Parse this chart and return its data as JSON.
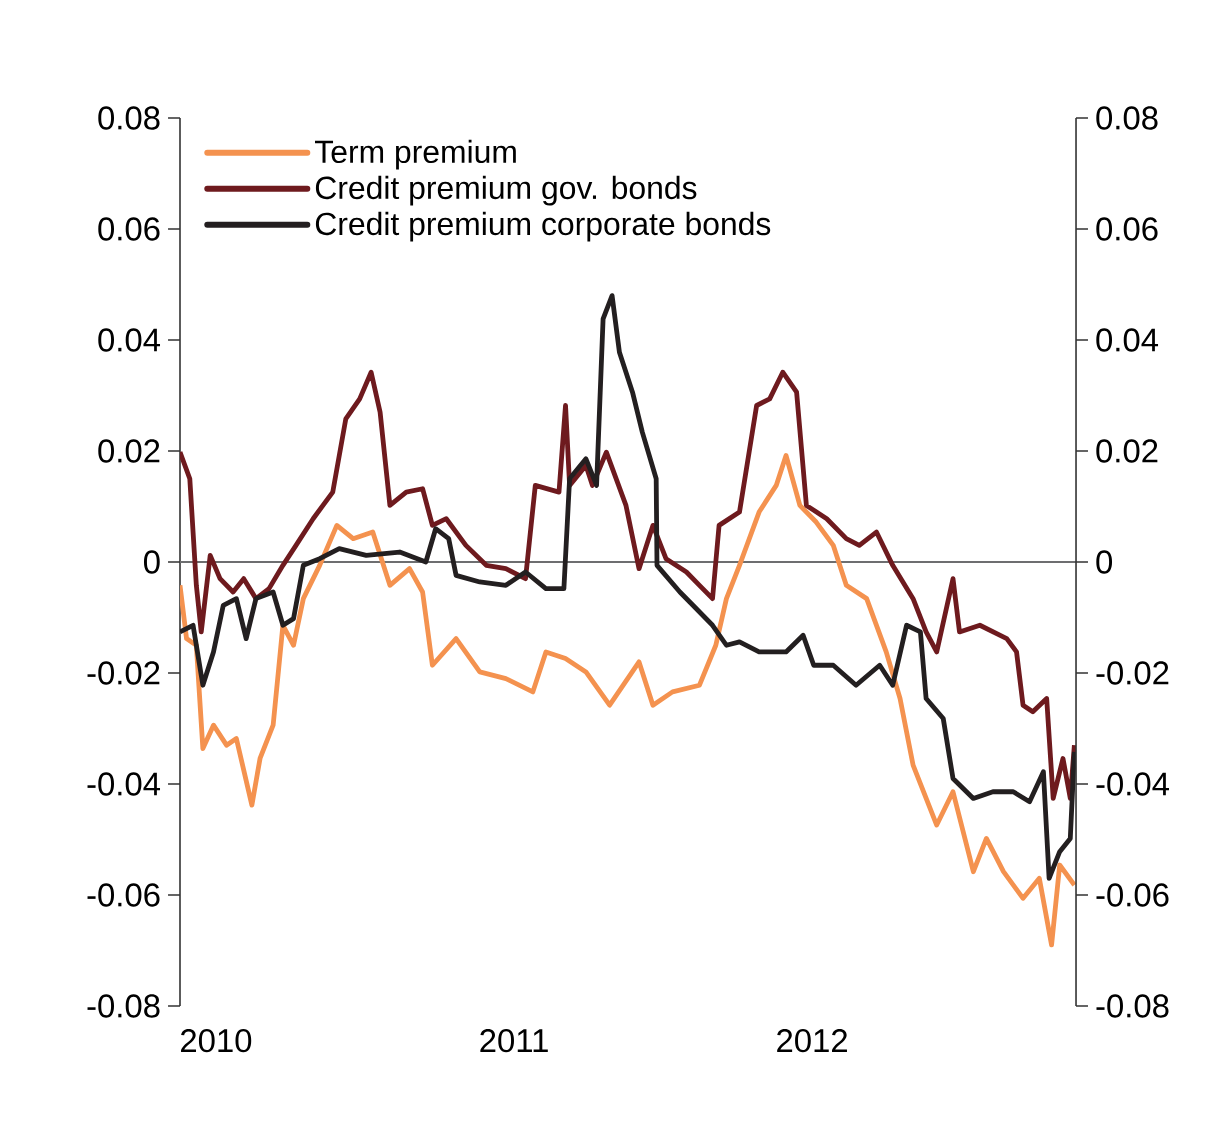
{
  "chart_data": {
    "type": "line",
    "xlim": [
      "2010-01-06",
      "2013-01-08"
    ],
    "xticks": [
      {
        "value": "2010-02-19",
        "label": "2010"
      },
      {
        "value": "2011-02-19",
        "label": "2011"
      },
      {
        "value": "2012-02-19",
        "label": "2012"
      }
    ],
    "ylim": [
      -0.08,
      0.08
    ],
    "yticks": [
      -0.08,
      -0.06,
      -0.04,
      -0.02,
      0,
      0.02,
      0.04,
      0.06,
      0.08
    ],
    "y2lim": [
      -0.08,
      0.08
    ],
    "y2ticks": [
      -0.08,
      -0.06,
      -0.04,
      -0.02,
      0,
      0.02,
      0.04,
      0.06,
      0.08
    ],
    "legend": "top left",
    "ref_lines": [
      {
        "axis": "y",
        "value": 0,
        "color": "#6d6e70"
      }
    ],
    "series": [
      {
        "name": "Term premium",
        "color": "#f4924f",
        "x": [
          "2010-01-06",
          "2010-01-14",
          "2010-01-26",
          "2010-02-03",
          "2010-02-16",
          "2010-03-04",
          "2010-03-16",
          "2010-04-04",
          "2010-04-14",
          "2010-04-30",
          "2010-05-12",
          "2010-05-25",
          "2010-06-06",
          "2010-06-26",
          "2010-07-17",
          "2010-08-06",
          "2010-08-30",
          "2010-09-20",
          "2010-10-14",
          "2010-10-30",
          "2010-11-11",
          "2010-12-10",
          "2011-01-08",
          "2011-02-09",
          "2011-03-14",
          "2011-03-30",
          "2011-04-23",
          "2011-05-18",
          "2011-06-16",
          "2011-07-22",
          "2011-08-08",
          "2011-09-01",
          "2011-10-04",
          "2011-10-24",
          "2011-11-06",
          "2011-11-22",
          "2011-12-16",
          "2012-01-06",
          "2012-01-18",
          "2012-02-04",
          "2012-02-24",
          "2012-03-16",
          "2012-04-01",
          "2012-04-26",
          "2012-05-20",
          "2012-06-06",
          "2012-06-22",
          "2012-07-21",
          "2012-08-10",
          "2012-09-04",
          "2012-09-20",
          "2012-10-11",
          "2012-11-04",
          "2012-11-24",
          "2012-12-09",
          "2012-12-19",
          "2013-01-06"
        ],
        "values": [
          -0.0042,
          -0.0138,
          -0.015,
          -0.0336,
          -0.0294,
          -0.033,
          -0.0318,
          -0.0438,
          -0.0354,
          -0.0294,
          -0.0114,
          -0.015,
          -0.0066,
          -0.0006,
          0.0066,
          0.0042,
          0.0054,
          -0.0042,
          -0.0012,
          -0.0054,
          -0.0186,
          -0.0138,
          -0.0198,
          -0.021,
          -0.0234,
          -0.0162,
          -0.0174,
          -0.0198,
          -0.0258,
          -0.018,
          -0.0258,
          -0.0234,
          -0.0222,
          -0.015,
          -0.0066,
          -0.0006,
          0.009,
          0.0138,
          0.0192,
          0.0102,
          0.0072,
          0.003,
          -0.0042,
          -0.0066,
          -0.0162,
          -0.0246,
          -0.0366,
          -0.0474,
          -0.0414,
          -0.0558,
          -0.0498,
          -0.0558,
          -0.0606,
          -0.057,
          -0.069,
          -0.0546,
          -0.0582
        ]
      },
      {
        "name": "Credit premium gov. bonds",
        "color": "#6e1a1e",
        "x": [
          "2010-01-06",
          "2010-01-18",
          "2010-01-26",
          "2010-02-01",
          "2010-02-12",
          "2010-02-24",
          "2010-03-12",
          "2010-03-25",
          "2010-04-09",
          "2010-04-25",
          "2010-05-12",
          "2010-05-28",
          "2010-06-18",
          "2010-07-12",
          "2010-07-28",
          "2010-08-14",
          "2010-08-28",
          "2010-09-08",
          "2010-09-20",
          "2010-10-10",
          "2010-10-30",
          "2010-11-11",
          "2010-11-28",
          "2010-12-22",
          "2011-01-16",
          "2011-02-09",
          "2011-03-05",
          "2011-03-17",
          "2011-04-15",
          "2011-04-23",
          "2011-04-28",
          "2011-05-18",
          "2011-05-26",
          "2011-06-12",
          "2011-07-06",
          "2011-07-22",
          "2011-08-08",
          "2011-08-24",
          "2011-09-18",
          "2011-10-04",
          "2011-10-20",
          "2011-10-28",
          "2011-11-22",
          "2011-12-13",
          "2011-12-29",
          "2012-01-14",
          "2012-01-31",
          "2012-02-12",
          "2012-03-08",
          "2012-04-01",
          "2012-04-17",
          "2012-05-08",
          "2012-05-28",
          "2012-06-22",
          "2012-07-08",
          "2012-07-21",
          "2012-08-10",
          "2012-08-18",
          "2012-09-12",
          "2012-10-15",
          "2012-10-27",
          "2012-11-04",
          "2012-11-16",
          "2012-12-03",
          "2012-12-11",
          "2012-12-23",
          "2013-01-01",
          "2013-01-06"
        ],
        "values": [
          0.0198,
          0.015,
          -0.0042,
          -0.0126,
          0.0012,
          -0.003,
          -0.0054,
          -0.003,
          -0.0066,
          -0.0048,
          -0.0006,
          0.003,
          0.0078,
          0.0126,
          0.0258,
          0.0294,
          0.0342,
          0.027,
          0.0102,
          0.0126,
          0.0132,
          0.0066,
          0.0078,
          0.003,
          -0.0006,
          -0.0012,
          -0.003,
          0.0138,
          0.0126,
          0.0282,
          0.0138,
          0.0174,
          0.0138,
          0.0198,
          0.0102,
          -0.0012,
          0.0066,
          0.0006,
          -0.0018,
          -0.0042,
          -0.0066,
          0.0066,
          0.009,
          0.0282,
          0.0294,
          0.0342,
          0.0306,
          0.0102,
          0.0078,
          0.0042,
          0.003,
          0.0054,
          -0.0006,
          -0.0066,
          -0.0126,
          -0.0162,
          -0.003,
          -0.0126,
          -0.0114,
          -0.0138,
          -0.0162,
          -0.0258,
          -0.027,
          -0.0246,
          -0.0426,
          -0.0354,
          -0.0426,
          -0.033
        ]
      },
      {
        "name": "Credit premium corporate bonds",
        "color": "#231f20",
        "x": [
          "2010-01-06",
          "2010-01-22",
          "2010-02-03",
          "2010-02-16",
          "2010-02-28",
          "2010-03-16",
          "2010-03-28",
          "2010-04-09",
          "2010-04-30",
          "2010-05-12",
          "2010-05-25",
          "2010-06-06",
          "2010-06-26",
          "2010-07-20",
          "2010-08-22",
          "2010-10-02",
          "2010-11-03",
          "2010-11-15",
          "2010-12-01",
          "2010-12-10",
          "2011-01-08",
          "2011-02-09",
          "2011-03-05",
          "2011-03-30",
          "2011-04-21",
          "2011-04-28",
          "2011-05-18",
          "2011-05-31",
          "2011-06-08",
          "2011-06-19",
          "2011-06-28",
          "2011-07-14",
          "2011-07-26",
          "2011-08-12",
          "2011-08-13",
          "2011-09-10",
          "2011-09-26",
          "2011-10-20",
          "2011-11-06",
          "2011-11-22",
          "2011-12-16",
          "2012-01-18",
          "2012-02-08",
          "2012-02-21",
          "2012-03-16",
          "2012-04-13",
          "2012-05-12",
          "2012-05-28",
          "2012-06-14",
          "2012-07-01",
          "2012-07-08",
          "2012-07-29",
          "2012-08-10",
          "2012-09-04",
          "2012-09-28",
          "2012-10-23",
          "2012-11-12",
          "2012-11-29",
          "2012-12-06",
          "2012-12-19",
          "2013-01-01",
          "2013-01-06"
        ],
        "values": [
          -0.0126,
          -0.0114,
          -0.0222,
          -0.0162,
          -0.0078,
          -0.0066,
          -0.0138,
          -0.0066,
          -0.0054,
          -0.0114,
          -0.0102,
          -0.0006,
          0.0006,
          0.0024,
          0.0012,
          0.0018,
          0,
          0.006,
          0.0042,
          -0.0024,
          -0.0036,
          -0.0042,
          -0.0018,
          -0.0048,
          -0.0048,
          0.015,
          0.0186,
          0.0138,
          0.0438,
          0.048,
          0.0378,
          0.0306,
          0.0234,
          0.015,
          -0.0006,
          -0.0054,
          -0.0078,
          -0.0114,
          -0.015,
          -0.0144,
          -0.0162,
          -0.0162,
          -0.0132,
          -0.0186,
          -0.0186,
          -0.0222,
          -0.0186,
          -0.0222,
          -0.0114,
          -0.0126,
          -0.0246,
          -0.0282,
          -0.039,
          -0.0426,
          -0.0414,
          -0.0414,
          -0.0432,
          -0.0378,
          -0.057,
          -0.0522,
          -0.0498,
          -0.0342
        ]
      }
    ]
  }
}
